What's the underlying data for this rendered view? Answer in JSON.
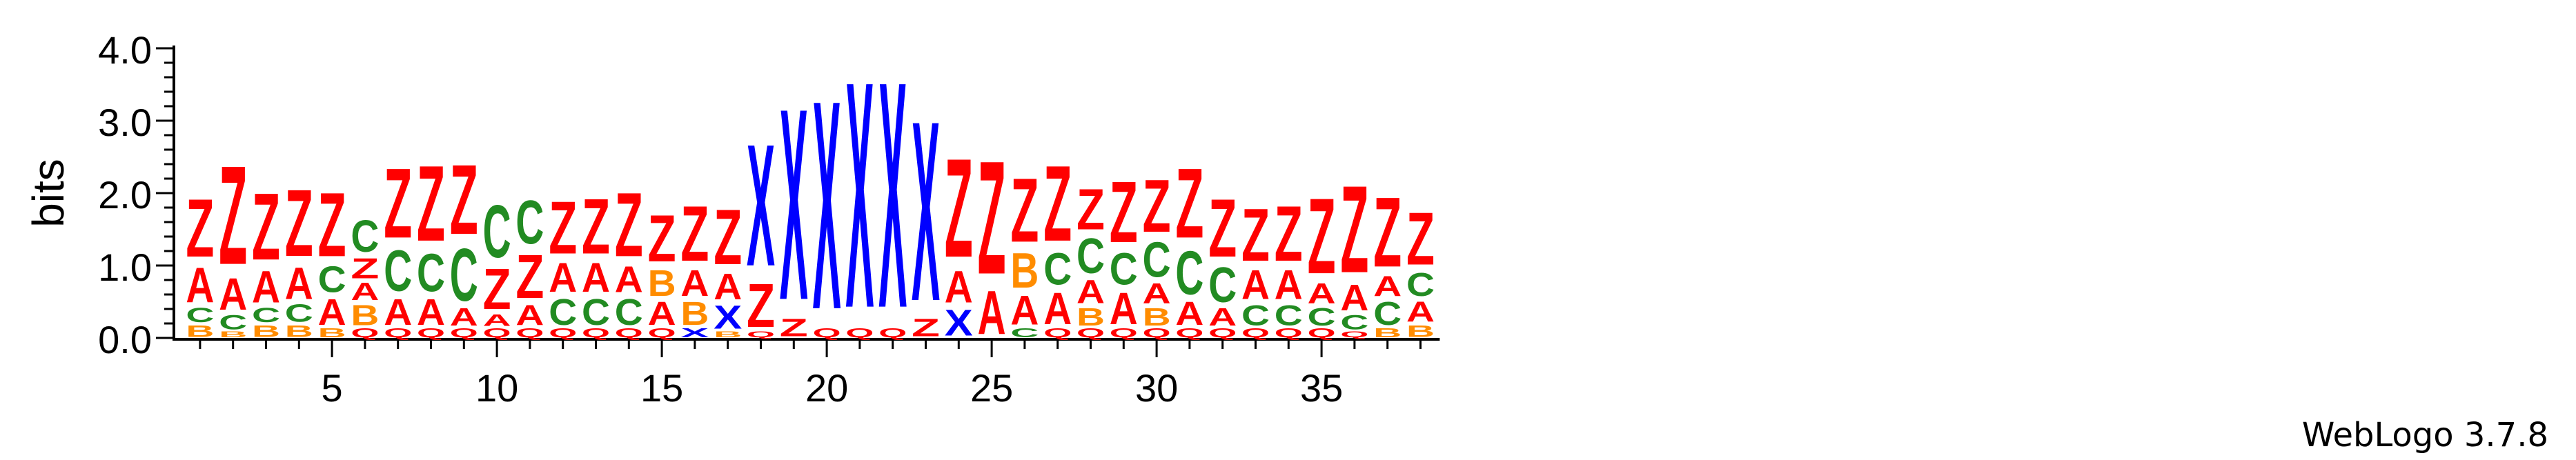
{
  "chart_data": {
    "type": "sequence-logo",
    "ylabel": "bits",
    "ylim": [
      0,
      4.0
    ],
    "yticks": [
      "0.0",
      "1.0",
      "2.0",
      "3.0",
      "4.0"
    ],
    "xticks": [
      5,
      10,
      15,
      20,
      25,
      30,
      35
    ],
    "n_positions": 38,
    "colors": {
      "Z": "#ff0000",
      "A": "#ff0000",
      "X": "#0000ff",
      "C": "#228b22",
      "B": "#ff8c00",
      "Q": "#ff0000"
    },
    "positions": [
      {
        "pos": 1,
        "stack": [
          [
            "B",
            0.2
          ],
          [
            "C",
            0.25
          ],
          [
            "A",
            0.6
          ],
          [
            "Z",
            1.0
          ]
        ]
      },
      {
        "pos": 2,
        "stack": [
          [
            "B",
            0.1
          ],
          [
            "C",
            0.25
          ],
          [
            "A",
            0.55
          ],
          [
            "Z",
            1.7
          ]
        ]
      },
      {
        "pos": 3,
        "stack": [
          [
            "B",
            0.2
          ],
          [
            "C",
            0.25
          ],
          [
            "A",
            0.55
          ],
          [
            "Z",
            1.15
          ]
        ]
      },
      {
        "pos": 4,
        "stack": [
          [
            "B",
            0.2
          ],
          [
            "C",
            0.3
          ],
          [
            "A",
            0.55
          ],
          [
            "Z",
            1.15
          ]
        ]
      },
      {
        "pos": 5,
        "stack": [
          [
            "B",
            0.15
          ],
          [
            "A",
            0.45
          ],
          [
            "C",
            0.45
          ],
          [
            "Z",
            1.1
          ]
        ]
      },
      {
        "pos": 6,
        "stack": [
          [
            "Q",
            0.15
          ],
          [
            "B",
            0.35
          ],
          [
            "A",
            0.3
          ],
          [
            "Z",
            0.35
          ],
          [
            "C",
            0.55
          ]
        ]
      },
      {
        "pos": 7,
        "stack": [
          [
            "Q",
            0.15
          ],
          [
            "A",
            0.45
          ],
          [
            "C",
            0.7
          ],
          [
            "Z",
            1.2
          ]
        ]
      },
      {
        "pos": 8,
        "stack": [
          [
            "Q",
            0.15
          ],
          [
            "A",
            0.45
          ],
          [
            "C",
            0.65
          ],
          [
            "Z",
            1.3
          ]
        ]
      },
      {
        "pos": 9,
        "stack": [
          [
            "Q",
            0.15
          ],
          [
            "A",
            0.3
          ],
          [
            "C",
            0.9
          ],
          [
            "Z",
            1.2
          ]
        ]
      },
      {
        "pos": 10,
        "stack": [
          [
            "Q",
            0.15
          ],
          [
            "A",
            0.2
          ],
          [
            "Z",
            0.7
          ],
          [
            "C",
            0.9
          ]
        ]
      },
      {
        "pos": 11,
        "stack": [
          [
            "Q",
            0.15
          ],
          [
            "A",
            0.35
          ],
          [
            "Z",
            0.75
          ],
          [
            "C",
            0.75
          ]
        ]
      },
      {
        "pos": 12,
        "stack": [
          [
            "Q",
            0.15
          ],
          [
            "C",
            0.45
          ],
          [
            "A",
            0.5
          ],
          [
            "Z",
            0.9
          ]
        ]
      },
      {
        "pos": 13,
        "stack": [
          [
            "Q",
            0.15
          ],
          [
            "C",
            0.45
          ],
          [
            "A",
            0.5
          ],
          [
            "Z",
            0.95
          ]
        ]
      },
      {
        "pos": 14,
        "stack": [
          [
            "Q",
            0.15
          ],
          [
            "C",
            0.45
          ],
          [
            "A",
            0.45
          ],
          [
            "Z",
            1.1
          ]
        ]
      },
      {
        "pos": 15,
        "stack": [
          [
            "Q",
            0.15
          ],
          [
            "A",
            0.4
          ],
          [
            "B",
            0.45
          ],
          [
            "Z",
            0.8
          ]
        ]
      },
      {
        "pos": 16,
        "stack": [
          [
            "X",
            0.15
          ],
          [
            "B",
            0.4
          ],
          [
            "A",
            0.45
          ],
          [
            "Z",
            0.95
          ]
        ]
      },
      {
        "pos": 17,
        "stack": [
          [
            "B",
            0.1
          ],
          [
            "X",
            0.4
          ],
          [
            "A",
            0.45
          ],
          [
            "Z",
            0.95
          ]
        ]
      },
      {
        "pos": 18,
        "stack": [
          [
            "Q",
            0.1
          ],
          [
            "Z",
            0.75
          ],
          [
            "X",
            2.1
          ]
        ]
      },
      {
        "pos": 19,
        "stack": [
          [
            "Z",
            0.3
          ],
          [
            "X",
            3.3
          ]
        ]
      },
      {
        "pos": 20,
        "stack": [
          [
            "Q",
            0.15
          ],
          [
            "X",
            3.6
          ]
        ]
      },
      {
        "pos": 21,
        "stack": [
          [
            "Q",
            0.15
          ],
          [
            "X",
            3.9
          ]
        ]
      },
      {
        "pos": 22,
        "stack": [
          [
            "Q",
            0.15
          ],
          [
            "X",
            3.9
          ]
        ]
      },
      {
        "pos": 23,
        "stack": [
          [
            "Z",
            0.3
          ],
          [
            "X",
            3.1
          ]
        ]
      },
      {
        "pos": 24,
        "stack": [
          [
            "X",
            0.45
          ],
          [
            "A",
            0.55
          ],
          [
            "Z",
            1.7
          ]
        ]
      },
      {
        "pos": 25,
        "stack": [
          [
            "A",
            0.75
          ],
          [
            "Z",
            1.95
          ]
        ]
      },
      {
        "pos": 26,
        "stack": [
          [
            "C",
            0.15
          ],
          [
            "A",
            0.5
          ],
          [
            "B",
            0.6
          ],
          [
            "Z",
            1.1
          ]
        ]
      },
      {
        "pos": 27,
        "stack": [
          [
            "Q",
            0.15
          ],
          [
            "A",
            0.55
          ],
          [
            "C",
            0.55
          ],
          [
            "Z",
            1.3
          ]
        ]
      },
      {
        "pos": 28,
        "stack": [
          [
            "Q",
            0.15
          ],
          [
            "B",
            0.3
          ],
          [
            "A",
            0.4
          ],
          [
            "C",
            0.6
          ],
          [
            "Z",
            0.7
          ]
        ]
      },
      {
        "pos": 29,
        "stack": [
          [
            "Q",
            0.15
          ],
          [
            "A",
            0.55
          ],
          [
            "C",
            0.55
          ],
          [
            "Z",
            1.05
          ]
        ]
      },
      {
        "pos": 30,
        "stack": [
          [
            "Q",
            0.15
          ],
          [
            "B",
            0.3
          ],
          [
            "A",
            0.35
          ],
          [
            "C",
            0.6
          ],
          [
            "Z",
            0.9
          ]
        ]
      },
      {
        "pos": 31,
        "stack": [
          [
            "Q",
            0.15
          ],
          [
            "A",
            0.4
          ],
          [
            "C",
            0.75
          ],
          [
            "Z",
            1.2
          ]
        ]
      },
      {
        "pos": 32,
        "stack": [
          [
            "Q",
            0.15
          ],
          [
            "A",
            0.3
          ],
          [
            "C",
            0.6
          ],
          [
            "Z",
            1.0
          ]
        ]
      },
      {
        "pos": 33,
        "stack": [
          [
            "Q",
            0.15
          ],
          [
            "C",
            0.35
          ],
          [
            "A",
            0.5
          ],
          [
            "Z",
            0.9
          ]
        ]
      },
      {
        "pos": 34,
        "stack": [
          [
            "Q",
            0.15
          ],
          [
            "C",
            0.35
          ],
          [
            "A",
            0.5
          ],
          [
            "Z",
            0.95
          ]
        ]
      },
      {
        "pos": 35,
        "stack": [
          [
            "Q",
            0.15
          ],
          [
            "C",
            0.3
          ],
          [
            "A",
            0.35
          ],
          [
            "Z",
            1.3
          ]
        ]
      },
      {
        "pos": 36,
        "stack": [
          [
            "Q",
            0.1
          ],
          [
            "C",
            0.25
          ],
          [
            "A",
            0.45
          ],
          [
            "Z",
            1.5
          ]
        ]
      },
      {
        "pos": 37,
        "stack": [
          [
            "B",
            0.15
          ],
          [
            "C",
            0.4
          ],
          [
            "A",
            0.35
          ],
          [
            "Z",
            1.2
          ]
        ]
      },
      {
        "pos": 38,
        "stack": [
          [
            "B",
            0.2
          ],
          [
            "A",
            0.35
          ],
          [
            "C",
            0.4
          ],
          [
            "Z",
            0.9
          ]
        ]
      }
    ]
  },
  "footer": "WebLogo 3.7.8"
}
